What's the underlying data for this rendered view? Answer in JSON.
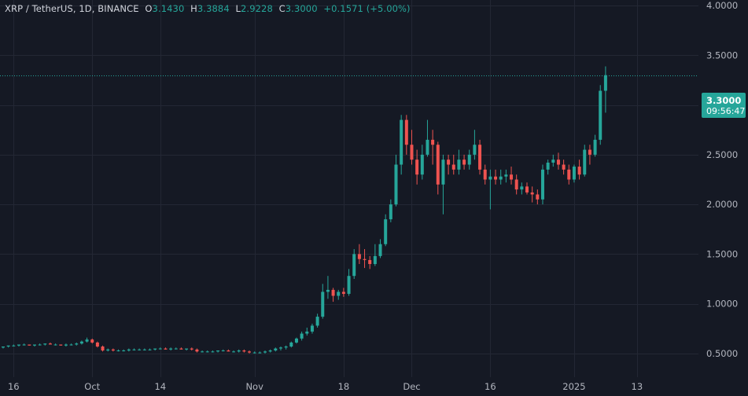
{
  "legend": {
    "symbol": "XRP / TetherUS, 1D, BINANCE",
    "o_label": "O",
    "o_value": "3.1430",
    "h_label": "H",
    "h_value": "3.3884",
    "l_label": "L",
    "l_value": "2.9228",
    "c_label": "C",
    "c_value": "3.3000",
    "change": "+0.1571 (+5.00%)"
  },
  "price_tag": {
    "price": "3.3000",
    "countdown": "09:56:47"
  },
  "colors": {
    "background": "#151924",
    "up": "#26a69a",
    "down": "#ef5350",
    "grid": "#232734",
    "text": "#b2b5be"
  },
  "chart_data": {
    "type": "candlestick",
    "ylim": [
      0.25,
      4.25
    ],
    "y_ticks": [
      "4.0000",
      "3.5000",
      "3.0000",
      "2.5000",
      "2.0000",
      "1.5000",
      "1.0000",
      "0.5000"
    ],
    "y_tick_values": [
      4.0,
      3.5,
      3.0,
      2.5,
      2.0,
      1.5,
      1.0,
      0.5
    ],
    "x_ticks": [
      {
        "label": "16",
        "index": 2
      },
      {
        "label": "Oct",
        "index": 17
      },
      {
        "label": "14",
        "index": 30
      },
      {
        "label": "Nov",
        "index": 48
      },
      {
        "label": "18",
        "index": 65
      },
      {
        "label": "Dec",
        "index": 78
      },
      {
        "label": "16",
        "index": 93
      },
      {
        "label": "2025",
        "index": 109
      },
      {
        "label": "13",
        "index": 121
      }
    ],
    "last_price": 3.3,
    "candles": [
      [
        0.56,
        0.57,
        0.55,
        0.57
      ],
      [
        0.57,
        0.58,
        0.56,
        0.58
      ],
      [
        0.58,
        0.59,
        0.57,
        0.58
      ],
      [
        0.58,
        0.59,
        0.57,
        0.59
      ],
      [
        0.59,
        0.6,
        0.58,
        0.59
      ],
      [
        0.59,
        0.59,
        0.58,
        0.58
      ],
      [
        0.58,
        0.59,
        0.57,
        0.59
      ],
      [
        0.59,
        0.6,
        0.58,
        0.59
      ],
      [
        0.59,
        0.6,
        0.58,
        0.6
      ],
      [
        0.6,
        0.61,
        0.59,
        0.59
      ],
      [
        0.59,
        0.6,
        0.58,
        0.59
      ],
      [
        0.59,
        0.59,
        0.58,
        0.58
      ],
      [
        0.58,
        0.6,
        0.57,
        0.59
      ],
      [
        0.59,
        0.6,
        0.58,
        0.59
      ],
      [
        0.59,
        0.61,
        0.58,
        0.6
      ],
      [
        0.6,
        0.63,
        0.59,
        0.62
      ],
      [
        0.62,
        0.66,
        0.61,
        0.64
      ],
      [
        0.64,
        0.65,
        0.6,
        0.61
      ],
      [
        0.61,
        0.62,
        0.56,
        0.57
      ],
      [
        0.57,
        0.58,
        0.52,
        0.53
      ],
      [
        0.53,
        0.55,
        0.52,
        0.54
      ],
      [
        0.54,
        0.55,
        0.52,
        0.53
      ],
      [
        0.53,
        0.54,
        0.52,
        0.53
      ],
      [
        0.53,
        0.54,
        0.52,
        0.53
      ],
      [
        0.53,
        0.55,
        0.52,
        0.54
      ],
      [
        0.54,
        0.55,
        0.53,
        0.54
      ],
      [
        0.54,
        0.55,
        0.53,
        0.54
      ],
      [
        0.54,
        0.55,
        0.53,
        0.54
      ],
      [
        0.54,
        0.55,
        0.53,
        0.54
      ],
      [
        0.54,
        0.55,
        0.53,
        0.55
      ],
      [
        0.55,
        0.56,
        0.54,
        0.55
      ],
      [
        0.55,
        0.56,
        0.54,
        0.54
      ],
      [
        0.54,
        0.56,
        0.53,
        0.55
      ],
      [
        0.55,
        0.56,
        0.54,
        0.55
      ],
      [
        0.55,
        0.56,
        0.54,
        0.54
      ],
      [
        0.54,
        0.55,
        0.53,
        0.55
      ],
      [
        0.55,
        0.56,
        0.53,
        0.54
      ],
      [
        0.54,
        0.55,
        0.51,
        0.52
      ],
      [
        0.52,
        0.53,
        0.51,
        0.52
      ],
      [
        0.52,
        0.53,
        0.51,
        0.52
      ],
      [
        0.52,
        0.53,
        0.51,
        0.52
      ],
      [
        0.52,
        0.53,
        0.51,
        0.53
      ],
      [
        0.53,
        0.54,
        0.52,
        0.53
      ],
      [
        0.53,
        0.54,
        0.52,
        0.52
      ],
      [
        0.52,
        0.53,
        0.51,
        0.52
      ],
      [
        0.52,
        0.54,
        0.51,
        0.53
      ],
      [
        0.53,
        0.54,
        0.51,
        0.52
      ],
      [
        0.52,
        0.53,
        0.5,
        0.51
      ],
      [
        0.51,
        0.52,
        0.5,
        0.51
      ],
      [
        0.51,
        0.52,
        0.5,
        0.51
      ],
      [
        0.51,
        0.53,
        0.5,
        0.52
      ],
      [
        0.52,
        0.54,
        0.51,
        0.53
      ],
      [
        0.53,
        0.56,
        0.52,
        0.55
      ],
      [
        0.55,
        0.57,
        0.53,
        0.56
      ],
      [
        0.56,
        0.58,
        0.54,
        0.57
      ],
      [
        0.57,
        0.62,
        0.56,
        0.61
      ],
      [
        0.61,
        0.66,
        0.6,
        0.65
      ],
      [
        0.65,
        0.72,
        0.63,
        0.7
      ],
      [
        0.7,
        0.76,
        0.68,
        0.72
      ],
      [
        0.72,
        0.8,
        0.7,
        0.78
      ],
      [
        0.78,
        0.9,
        0.76,
        0.87
      ],
      [
        0.87,
        1.2,
        0.85,
        1.12
      ],
      [
        1.12,
        1.28,
        1.05,
        1.14
      ],
      [
        1.14,
        1.16,
        1.02,
        1.08
      ],
      [
        1.08,
        1.14,
        1.04,
        1.12
      ],
      [
        1.12,
        1.16,
        1.07,
        1.1
      ],
      [
        1.1,
        1.35,
        1.08,
        1.28
      ],
      [
        1.28,
        1.55,
        1.25,
        1.5
      ],
      [
        1.5,
        1.6,
        1.4,
        1.45
      ],
      [
        1.45,
        1.55,
        1.36,
        1.44
      ],
      [
        1.44,
        1.48,
        1.35,
        1.4
      ],
      [
        1.4,
        1.6,
        1.38,
        1.48
      ],
      [
        1.48,
        1.65,
        1.46,
        1.6
      ],
      [
        1.6,
        1.9,
        1.58,
        1.85
      ],
      [
        1.85,
        2.05,
        1.82,
        2.0
      ],
      [
        2.0,
        2.5,
        1.98,
        2.4
      ],
      [
        2.4,
        2.9,
        2.3,
        2.85
      ],
      [
        2.85,
        2.9,
        2.5,
        2.6
      ],
      [
        2.6,
        2.75,
        2.4,
        2.45
      ],
      [
        2.45,
        2.55,
        2.2,
        2.3
      ],
      [
        2.3,
        2.6,
        2.25,
        2.5
      ],
      [
        2.5,
        2.85,
        2.48,
        2.65
      ],
      [
        2.65,
        2.75,
        2.4,
        2.6
      ],
      [
        2.6,
        2.63,
        2.1,
        2.2
      ],
      [
        2.2,
        2.5,
        1.9,
        2.45
      ],
      [
        2.45,
        2.5,
        2.3,
        2.4
      ],
      [
        2.4,
        2.5,
        2.3,
        2.35
      ],
      [
        2.35,
        2.55,
        2.3,
        2.45
      ],
      [
        2.45,
        2.5,
        2.35,
        2.4
      ],
      [
        2.4,
        2.55,
        2.35,
        2.5
      ],
      [
        2.5,
        2.75,
        2.45,
        2.6
      ],
      [
        2.6,
        2.65,
        2.3,
        2.35
      ],
      [
        2.35,
        2.4,
        2.2,
        2.25
      ],
      [
        2.25,
        2.35,
        1.95,
        2.28
      ],
      [
        2.28,
        2.35,
        2.2,
        2.25
      ],
      [
        2.25,
        2.35,
        2.2,
        2.28
      ],
      [
        2.28,
        2.35,
        2.22,
        2.3
      ],
      [
        2.3,
        2.38,
        2.2,
        2.25
      ],
      [
        2.25,
        2.3,
        2.1,
        2.15
      ],
      [
        2.15,
        2.22,
        2.1,
        2.18
      ],
      [
        2.18,
        2.22,
        2.1,
        2.12
      ],
      [
        2.12,
        2.18,
        2.02,
        2.1
      ],
      [
        2.1,
        2.15,
        2.0,
        2.05
      ],
      [
        2.05,
        2.4,
        2.0,
        2.35
      ],
      [
        2.35,
        2.45,
        2.3,
        2.42
      ],
      [
        2.42,
        2.5,
        2.38,
        2.45
      ],
      [
        2.45,
        2.52,
        2.35,
        2.4
      ],
      [
        2.4,
        2.45,
        2.3,
        2.35
      ],
      [
        2.35,
        2.4,
        2.2,
        2.25
      ],
      [
        2.25,
        2.4,
        2.22,
        2.38
      ],
      [
        2.38,
        2.45,
        2.25,
        2.3
      ],
      [
        2.3,
        2.6,
        2.28,
        2.55
      ],
      [
        2.55,
        2.6,
        2.4,
        2.5
      ],
      [
        2.5,
        2.7,
        2.48,
        2.65
      ],
      [
        2.65,
        3.2,
        2.6,
        3.143
      ],
      [
        3.143,
        3.3884,
        2.9228,
        3.3
      ]
    ]
  }
}
